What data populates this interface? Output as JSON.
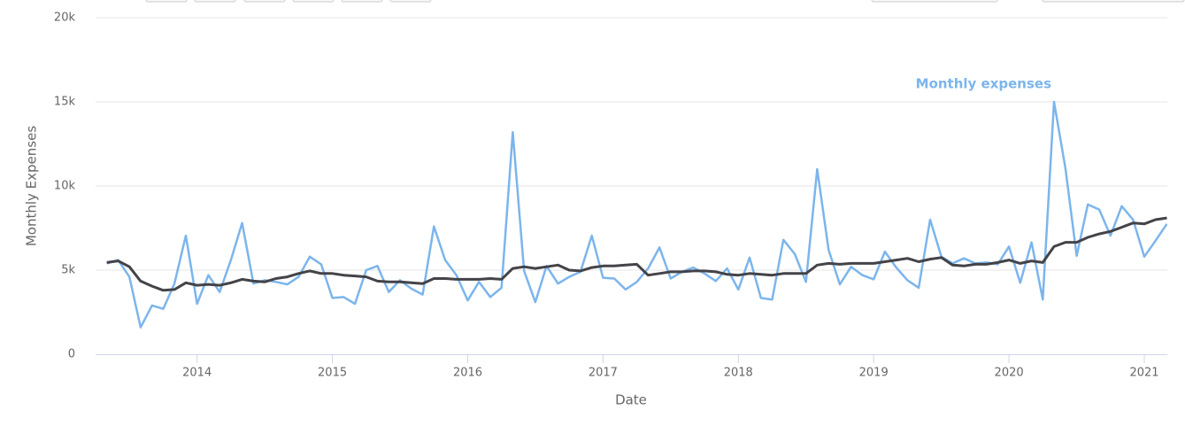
{
  "chart_data": {
    "type": "line",
    "y_label": "Monthly Expenses",
    "x_label": "Date",
    "xlim": [
      2013.25,
      2021.17
    ],
    "xticks": [
      2014,
      2015,
      2016,
      2017,
      2018,
      2019,
      2020,
      2021
    ],
    "ylim": [
      0,
      20000
    ],
    "yticks": [
      0,
      {
        "value": 5000,
        "label": "5k"
      },
      {
        "value": 10000,
        "label": "10k"
      },
      {
        "value": 15000,
        "label": "15k"
      },
      {
        "value": 20000,
        "label": "20k"
      }
    ],
    "grid": true,
    "x": [
      2013.333,
      2013.417,
      2013.5,
      2013.583,
      2013.667,
      2013.75,
      2013.833,
      2013.917,
      2014,
      2014.083,
      2014.167,
      2014.25,
      2014.333,
      2014.417,
      2014.5,
      2014.583,
      2014.667,
      2014.75,
      2014.833,
      2014.917,
      2015,
      2015.083,
      2015.167,
      2015.25,
      2015.333,
      2015.417,
      2015.5,
      2015.583,
      2015.667,
      2015.75,
      2015.833,
      2015.917,
      2016,
      2016.083,
      2016.167,
      2016.25,
      2016.333,
      2016.417,
      2016.5,
      2016.583,
      2016.667,
      2016.75,
      2016.833,
      2016.917,
      2017,
      2017.083,
      2017.167,
      2017.25,
      2017.333,
      2017.417,
      2017.5,
      2017.583,
      2017.667,
      2017.75,
      2017.833,
      2017.917,
      2018,
      2018.083,
      2018.167,
      2018.25,
      2018.333,
      2018.417,
      2018.5,
      2018.583,
      2018.667,
      2018.75,
      2018.833,
      2018.917,
      2019,
      2019.083,
      2019.167,
      2019.25,
      2019.333,
      2019.417,
      2019.5,
      2019.583,
      2019.667,
      2019.75,
      2019.833,
      2019.917,
      2020,
      2020.083,
      2020.167,
      2020.25,
      2020.333,
      2020.417,
      2020.5,
      2020.583,
      2020.667,
      2020.75,
      2020.833,
      2020.917,
      2021,
      2021.083,
      2021.167
    ],
    "series": [
      {
        "name": "Monthly expenses",
        "color": "#7cb5ec",
        "values": [
          5400,
          5600,
          4600,
          1600,
          2900,
          2700,
          4200,
          7050,
          3000,
          4700,
          3700,
          5600,
          7800,
          4200,
          4400,
          4300,
          4150,
          4600,
          5800,
          5350,
          3350,
          3400,
          3000,
          5000,
          5250,
          3700,
          4400,
          3900,
          3550,
          7600,
          5600,
          4700,
          3200,
          4300,
          3400,
          3950,
          13200,
          4950,
          3100,
          5250,
          4200,
          4600,
          4900,
          7050,
          4550,
          4500,
          3850,
          4300,
          5100,
          6350,
          4500,
          4900,
          5150,
          4800,
          4350,
          5100,
          3850,
          5750,
          3350,
          3250,
          6800,
          5950,
          4300,
          11000,
          6200,
          4150,
          5200,
          4700,
          4450,
          6100,
          5150,
          4400,
          3950,
          8000,
          5800,
          5400,
          5700,
          5400,
          5450,
          5350,
          6400,
          4250,
          6650,
          3250,
          15000,
          11050,
          5850,
          8900,
          8600,
          7050,
          8800,
          8000,
          5800,
          6750,
          7750
        ]
      },
      {
        "color": "#434348",
        "values": [
          5450,
          5550,
          5200,
          4350,
          4050,
          3800,
          3850,
          4250,
          4100,
          4150,
          4100,
          4250,
          4450,
          4350,
          4300,
          4500,
          4600,
          4800,
          4950,
          4800,
          4800,
          4700,
          4650,
          4600,
          4350,
          4300,
          4300,
          4250,
          4200,
          4500,
          4500,
          4450,
          4450,
          4450,
          4500,
          4450,
          5100,
          5200,
          5100,
          5200,
          5300,
          5000,
          4950,
          5150,
          5250,
          5250,
          5300,
          5350,
          4700,
          4800,
          4900,
          4900,
          4950,
          4950,
          4900,
          4750,
          4700,
          4800,
          4750,
          4700,
          4800,
          4800,
          4800,
          5300,
          5400,
          5350,
          5400,
          5400,
          5400,
          5500,
          5600,
          5700,
          5500,
          5650,
          5750,
          5300,
          5250,
          5350,
          5350,
          5450,
          5600,
          5400,
          5550,
          5450,
          6400,
          6650,
          6650,
          6950,
          7150,
          7300,
          7550,
          7800,
          7750,
          8000,
          8100
        ]
      }
    ]
  }
}
